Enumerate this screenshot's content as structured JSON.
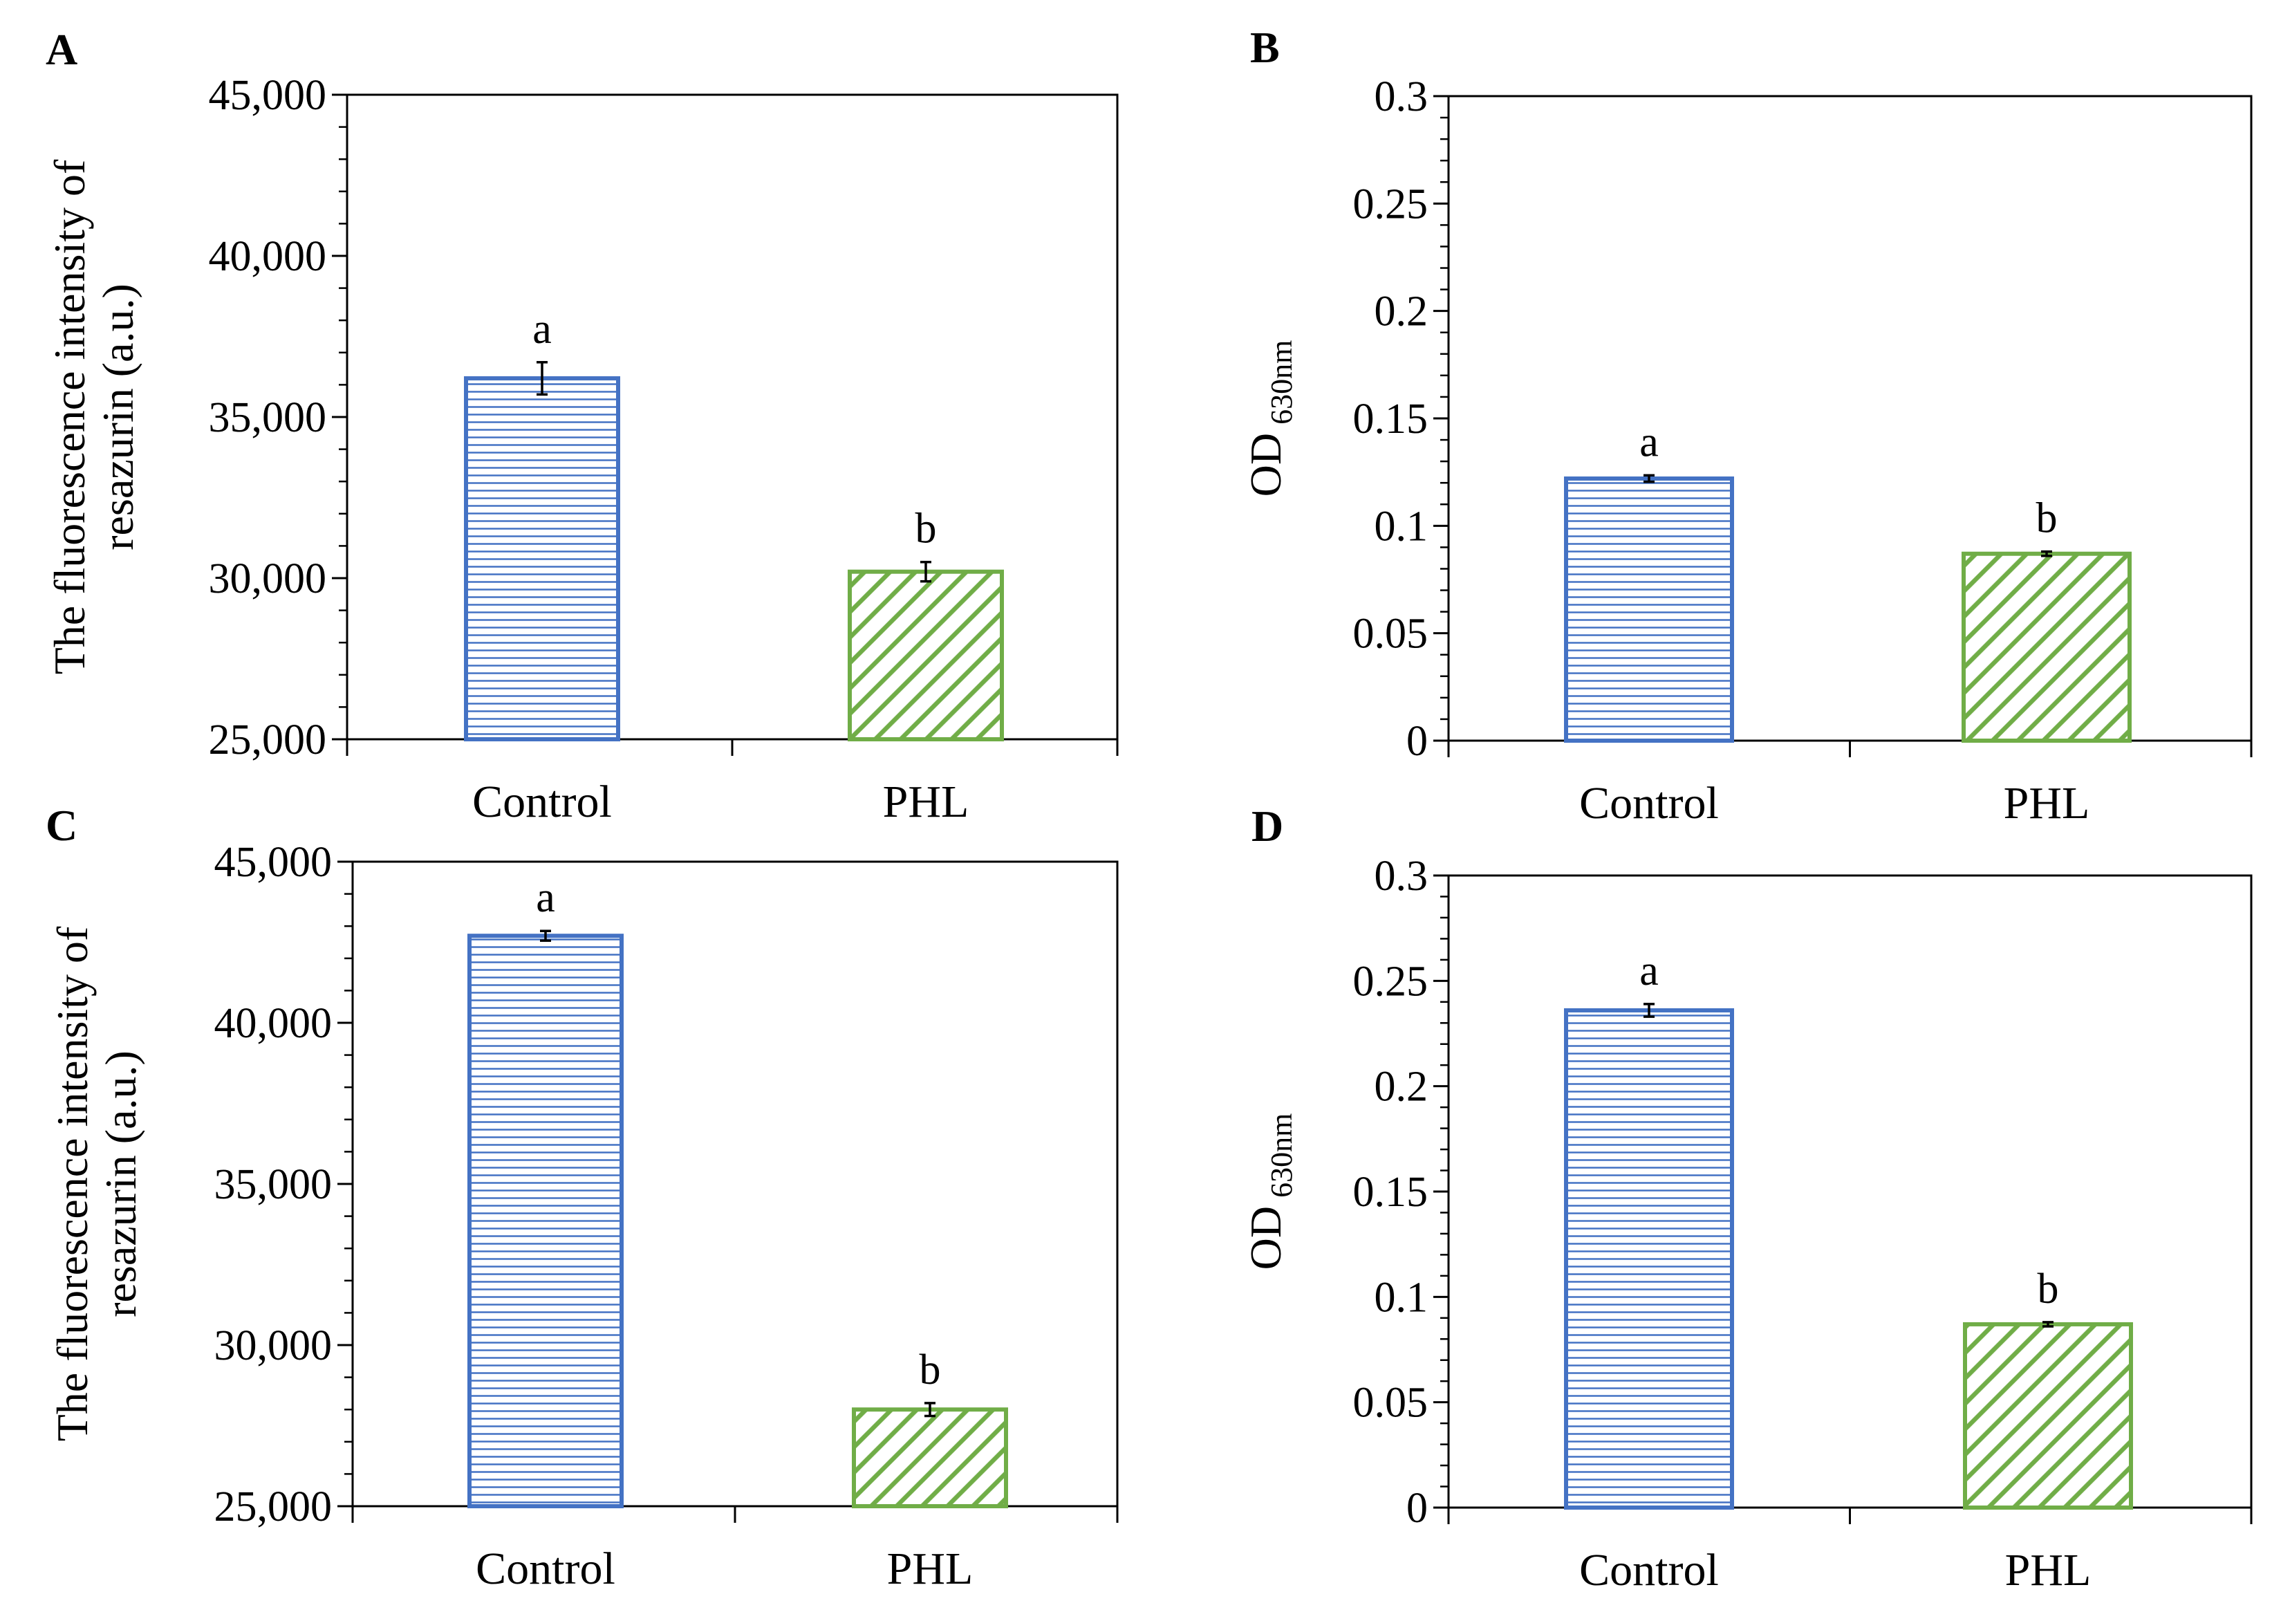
{
  "figure": {
    "colors": {
      "control": "#4472C4",
      "phl": "#70AD47",
      "axis": "#000000"
    }
  },
  "chart_data": [
    {
      "panel": "A",
      "type": "bar",
      "categories": [
        "Control",
        "PHL"
      ],
      "values": [
        36200,
        30200
      ],
      "errors": [
        500,
        300
      ],
      "significance": [
        "a",
        "b"
      ],
      "ylabel_lines": [
        "The fluorescence intensity of",
        "resazurin (a.u.)"
      ],
      "ylabel_main": "",
      "ylabel_sub": "",
      "ylim": [
        25000,
        45000
      ],
      "yticks": [
        25000,
        30000,
        35000,
        40000,
        45000
      ],
      "ytick_labels": [
        "25,000",
        "30,000",
        "35,000",
        "40,000",
        "45,000"
      ],
      "grid": false
    },
    {
      "panel": "B",
      "type": "bar",
      "categories": [
        "Control",
        "PHL"
      ],
      "values": [
        0.122,
        0.087
      ],
      "errors": [
        0.0015,
        0.001
      ],
      "significance": [
        "a",
        "b"
      ],
      "ylabel_lines": [],
      "ylabel_main": "OD",
      "ylabel_sub": "630nm",
      "ylim": [
        0,
        0.3
      ],
      "yticks": [
        0,
        0.05,
        0.1,
        0.15,
        0.2,
        0.25,
        0.3
      ],
      "ytick_labels": [
        "0",
        "0.05",
        "0.1",
        "0.15",
        "0.2",
        "0.25",
        "0.3"
      ],
      "grid": false
    },
    {
      "panel": "C",
      "type": "bar",
      "categories": [
        "Control",
        "PHL"
      ],
      "values": [
        42700,
        28000
      ],
      "errors": [
        150,
        200
      ],
      "significance": [
        "a",
        "b"
      ],
      "ylabel_lines": [
        "The fluorescence intensity of",
        "resazurin (a.u.)"
      ],
      "ylabel_main": "",
      "ylabel_sub": "",
      "ylim": [
        25000,
        45000
      ],
      "yticks": [
        25000,
        30000,
        35000,
        40000,
        45000
      ],
      "ytick_labels": [
        "25,000",
        "30,000",
        "35,000",
        "40,000",
        "45,000"
      ],
      "grid": false
    },
    {
      "panel": "D",
      "type": "bar",
      "categories": [
        "Control",
        "PHL"
      ],
      "values": [
        0.236,
        0.087
      ],
      "errors": [
        0.003,
        0.001
      ],
      "significance": [
        "a",
        "b"
      ],
      "ylabel_lines": [],
      "ylabel_main": "OD",
      "ylabel_sub": "630nm",
      "ylim": [
        0,
        0.3
      ],
      "yticks": [
        0,
        0.05,
        0.1,
        0.15,
        0.2,
        0.25,
        0.3
      ],
      "ytick_labels": [
        "0",
        "0.05",
        "0.1",
        "0.15",
        "0.2",
        "0.25",
        "0.3"
      ],
      "grid": false
    }
  ]
}
